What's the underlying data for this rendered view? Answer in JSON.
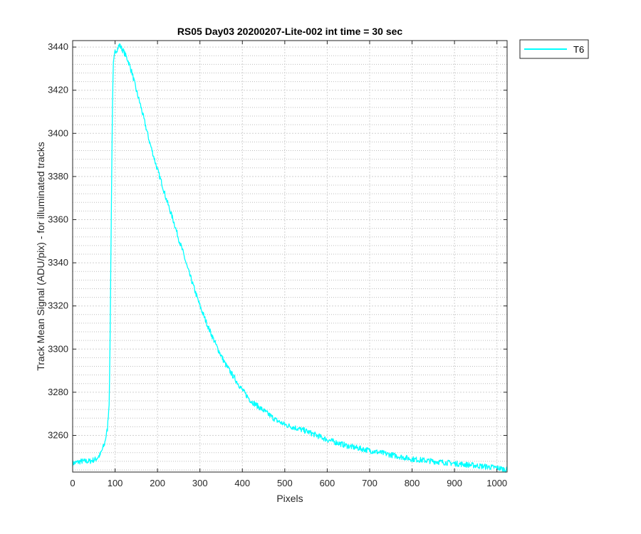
{
  "chart_data": {
    "type": "line",
    "title": "RS05 Day03 20200207-Lite-002 int time = 30 sec",
    "xlabel": "Pixels",
    "ylabel": "Track Mean Signal (ADU/pix) - for illuminated tracks",
    "xlim": [
      0,
      1024
    ],
    "ylim": [
      3243,
      3443
    ],
    "x_ticks": [
      0,
      100,
      200,
      300,
      400,
      500,
      600,
      700,
      800,
      900,
      1000
    ],
    "x_tick_labels": [
      "0",
      "100",
      "200",
      "300",
      "400",
      "500",
      "600",
      "700",
      "800",
      "900",
      "1000"
    ],
    "y_ticks": [
      3260,
      3280,
      3300,
      3320,
      3340,
      3360,
      3380,
      3400,
      3420,
      3440
    ],
    "y_tick_labels": [
      "3260",
      "3280",
      "3300",
      "3320",
      "3340",
      "3360",
      "3380",
      "3400",
      "3420",
      "3440"
    ],
    "y_minor_step": 4,
    "grid": true,
    "minor_grid": true,
    "legend_position": "outside-top-right",
    "series": [
      {
        "name": "T6",
        "color": "#00ffff",
        "points": [
          [
            0,
            3247
          ],
          [
            20,
            3248
          ],
          [
            40,
            3248
          ],
          [
            55,
            3249
          ],
          [
            65,
            3251
          ],
          [
            75,
            3256
          ],
          [
            82,
            3263
          ],
          [
            86,
            3275
          ],
          [
            88,
            3300
          ],
          [
            90,
            3340
          ],
          [
            92,
            3380
          ],
          [
            94,
            3415
          ],
          [
            96,
            3432
          ],
          [
            100,
            3438
          ],
          [
            105,
            3439
          ],
          [
            110,
            3441
          ],
          [
            120,
            3438
          ],
          [
            130,
            3434
          ],
          [
            140,
            3428
          ],
          [
            150,
            3420
          ],
          [
            160,
            3413
          ],
          [
            170,
            3405
          ],
          [
            180,
            3397
          ],
          [
            190,
            3390
          ],
          [
            200,
            3383
          ],
          [
            210,
            3377
          ],
          [
            220,
            3370
          ],
          [
            230,
            3364
          ],
          [
            240,
            3358
          ],
          [
            250,
            3351
          ],
          [
            260,
            3345
          ],
          [
            270,
            3338
          ],
          [
            280,
            3332
          ],
          [
            290,
            3326
          ],
          [
            300,
            3320
          ],
          [
            320,
            3310
          ],
          [
            340,
            3301
          ],
          [
            360,
            3293
          ],
          [
            380,
            3287
          ],
          [
            400,
            3281
          ],
          [
            420,
            3276
          ],
          [
            440,
            3273
          ],
          [
            460,
            3270
          ],
          [
            480,
            3267
          ],
          [
            500,
            3265
          ],
          [
            550,
            3262
          ],
          [
            600,
            3258
          ],
          [
            650,
            3255
          ],
          [
            700,
            3253
          ],
          [
            750,
            3251
          ],
          [
            800,
            3249
          ],
          [
            850,
            3248
          ],
          [
            900,
            3247
          ],
          [
            950,
            3246
          ],
          [
            1000,
            3245
          ],
          [
            1024,
            3244
          ]
        ]
      }
    ]
  },
  "colors": {
    "line": "#00ffff",
    "axis": "#262626",
    "grid": "#d0d0d0"
  }
}
